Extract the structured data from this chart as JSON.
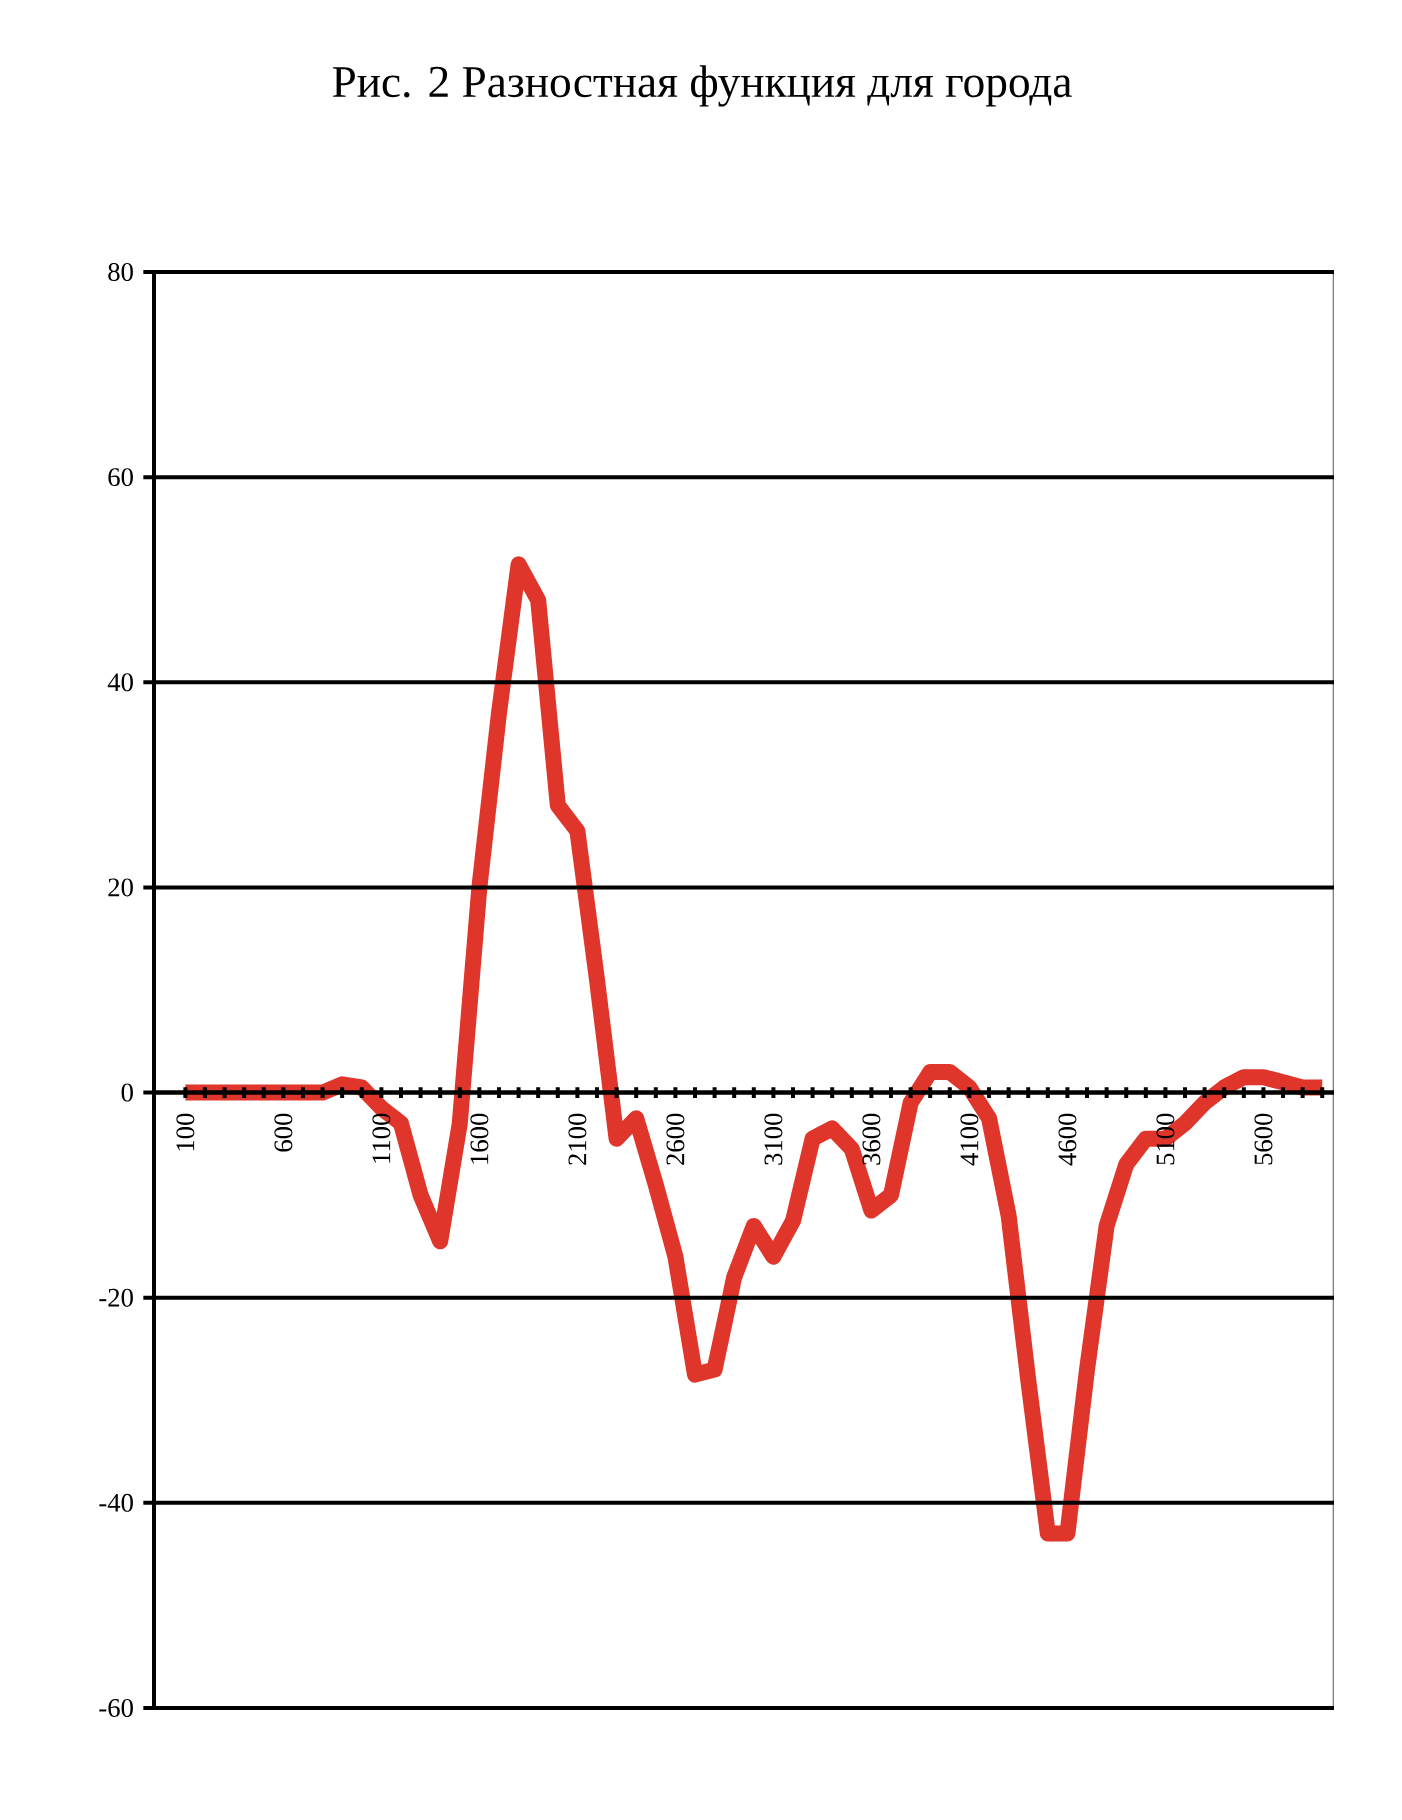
{
  "chart_data": {
    "type": "line",
    "title": "Рис. 2 Разностная функция для города",
    "categories": [
      "100",
      null,
      null,
      null,
      null,
      "600",
      null,
      null,
      null,
      null,
      "1100",
      null,
      null,
      null,
      null,
      "1600",
      null,
      null,
      null,
      null,
      "2100",
      null,
      null,
      null,
      null,
      "2600",
      null,
      null,
      null,
      null,
      "3100",
      null,
      null,
      null,
      null,
      "3600",
      null,
      null,
      null,
      null,
      "4100",
      null,
      null,
      null,
      null,
      "4600",
      null,
      null,
      null,
      null,
      "5100",
      null,
      null,
      null,
      null,
      "5600",
      null,
      null,
      null
    ],
    "series": [
      {
        "color": "#e0352b",
        "values": [
          0,
          0,
          0,
          0,
          0,
          0,
          0,
          0,
          0.8,
          0.5,
          -1.5,
          -3,
          -10,
          -14.5,
          -3,
          20,
          37,
          51.5,
          48,
          28,
          25.5,
          11,
          -4.5,
          -2.5,
          -9,
          -16,
          -27.5,
          -27,
          -18,
          -13,
          -16,
          -12.5,
          -4.5,
          -3.5,
          -5.5,
          -11.5,
          -10,
          -1,
          2,
          2,
          0.5,
          -2.5,
          -12,
          -28,
          -43,
          -43,
          -27,
          -13,
          -7,
          -4.5,
          -4.5,
          -3,
          -1,
          0.5,
          1.5,
          1.5,
          1,
          0.5,
          0.5
        ]
      }
    ],
    "ylim": [
      -60,
      80
    ],
    "yticks": [
      -60,
      -40,
      -20,
      0,
      20,
      40,
      60,
      80
    ],
    "grid": "y",
    "line_style": "solid",
    "marker": "none"
  }
}
